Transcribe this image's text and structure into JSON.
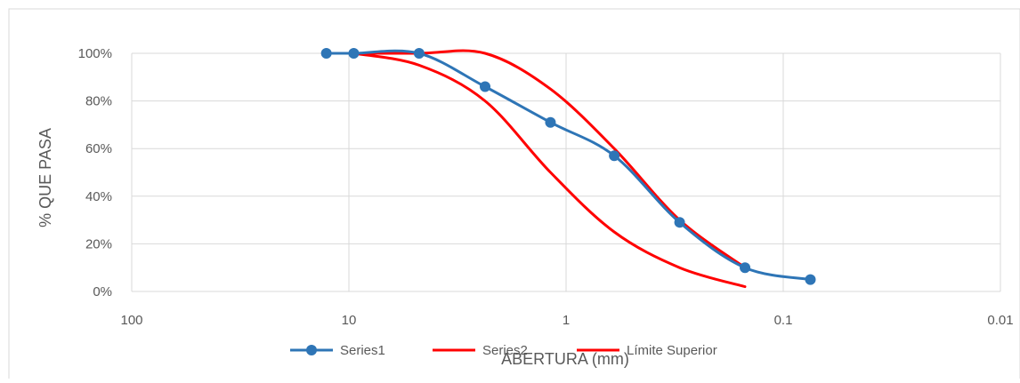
{
  "chart_data": {
    "type": "line",
    "title": "",
    "xlabel": "ABERTURA (mm)",
    "ylabel": "% QUE PASA",
    "x_scale": "log",
    "x_reversed": true,
    "xlim": [
      100,
      0.01
    ],
    "ylim": [
      0,
      1
    ],
    "x_ticks": [
      100,
      10,
      1,
      0.1,
      0.01
    ],
    "x_tick_labels": [
      "100",
      "10",
      "1",
      "0.1",
      "0.01"
    ],
    "y_ticks": [
      0,
      0.2,
      0.4,
      0.6,
      0.8,
      1.0
    ],
    "y_tick_labels": [
      "0%",
      "20%",
      "40%",
      "60%",
      "80%",
      "100%"
    ],
    "grid": true,
    "legend_position": "bottom",
    "series": [
      {
        "name": "Series1",
        "color": "#2e75b6",
        "markers": true,
        "x": [
          12.7,
          9.5,
          4.75,
          2.36,
          1.18,
          0.6,
          0.3,
          0.15,
          0.075
        ],
        "y": [
          1.0,
          1.0,
          1.0,
          0.86,
          0.71,
          0.57,
          0.29,
          0.1,
          0.05
        ]
      },
      {
        "name": "Series2",
        "color": "#ff0000",
        "markers": false,
        "x": [
          9.5,
          4.75,
          2.36,
          1.18,
          0.6,
          0.3,
          0.15
        ],
        "y": [
          1.0,
          0.95,
          0.8,
          0.5,
          0.25,
          0.1,
          0.02
        ]
      },
      {
        "name": "Límite Superior",
        "color": "#ff0000",
        "markers": false,
        "x": [
          9.5,
          4.75,
          2.36,
          1.18,
          0.6,
          0.3,
          0.15
        ],
        "y": [
          1.0,
          1.0,
          1.0,
          0.85,
          0.6,
          0.3,
          0.1
        ]
      }
    ]
  }
}
